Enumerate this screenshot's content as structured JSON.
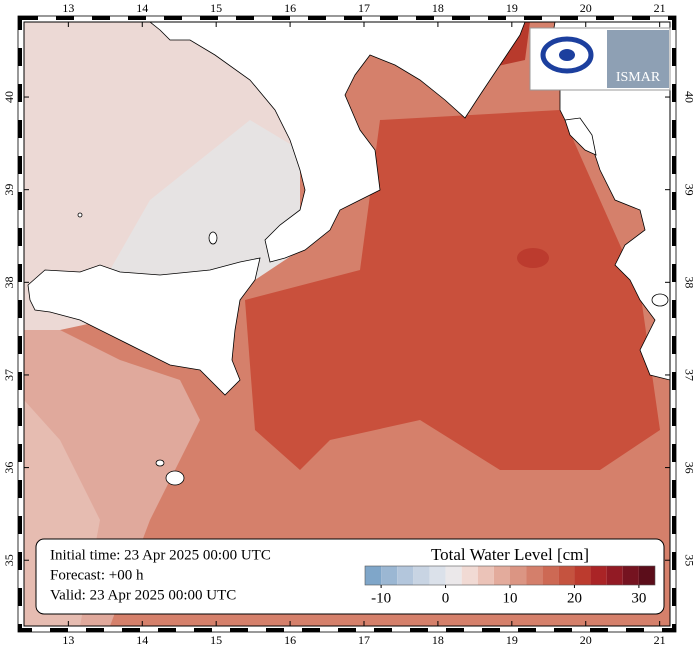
{
  "map": {
    "lon_range": [
      12.4,
      21.14
    ],
    "lat_range": [
      34.29,
      40.81
    ],
    "lon_ticks": [
      13,
      14,
      15,
      16,
      17,
      18,
      19,
      20,
      21
    ],
    "lat_ticks": [
      35,
      36,
      37,
      38,
      39,
      40
    ]
  },
  "info": {
    "initial": "Initial time: 23 Apr 2025 00:00 UTC",
    "forecast": "Forecast: +00 h",
    "valid": "Valid: 23 Apr 2025 00:00 UTC"
  },
  "colorbar": {
    "title": "Total Water Level [cm]",
    "bounds": [
      -12.5,
      -10,
      -7.5,
      -5,
      -2.5,
      0,
      2.5,
      5,
      7.5,
      10,
      12.5,
      15,
      17.5,
      20,
      22.5,
      25,
      27.5,
      30,
      32.5
    ],
    "colors": [
      "#7fa6c9",
      "#9bb7d3",
      "#b3c6dc",
      "#c8d4e3",
      "#dbe1ea",
      "#ebe8ea",
      "#f1dad4",
      "#ebc3b8",
      "#e3ab9c",
      "#db9583",
      "#d47f6b",
      "#cd6954",
      "#c5533f",
      "#bc3b2e",
      "#aa2426",
      "#921a24",
      "#751320",
      "#5b0d1a"
    ],
    "ticks": [
      -10,
      0,
      10,
      20,
      30
    ]
  },
  "logos": {
    "right": "ISMAR"
  }
}
